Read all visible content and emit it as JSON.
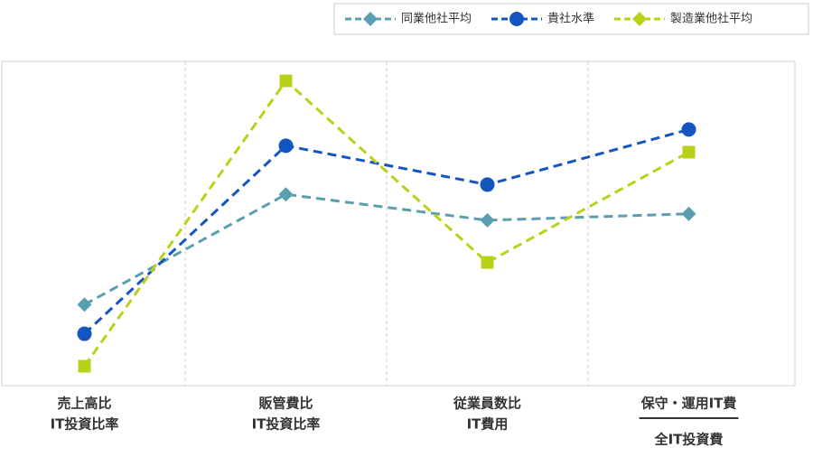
{
  "chart_data": {
    "type": "line",
    "categories": [
      [
        "売上高比",
        "IT投資比率"
      ],
      [
        "販管費比",
        "IT投資比率"
      ],
      [
        "従業員数比",
        "IT費用"
      ],
      [
        "保守・運用IT費",
        "全IT投資費"
      ]
    ],
    "series": [
      {
        "name": "同業他社平均",
        "color": "#5a9fb0",
        "marker": "diamond",
        "values": [
          25,
          59,
          51,
          53
        ]
      },
      {
        "name": "貴社水準",
        "color": "#1555c0",
        "marker": "circle",
        "values": [
          16,
          74,
          62,
          79
        ]
      },
      {
        "name": "製造業他社平均",
        "color": "#b8d21a",
        "marker": "square",
        "values": [
          6,
          94,
          38,
          72
        ]
      }
    ],
    "ylim": [
      0,
      100
    ],
    "grid": true,
    "legend": "top-right"
  }
}
